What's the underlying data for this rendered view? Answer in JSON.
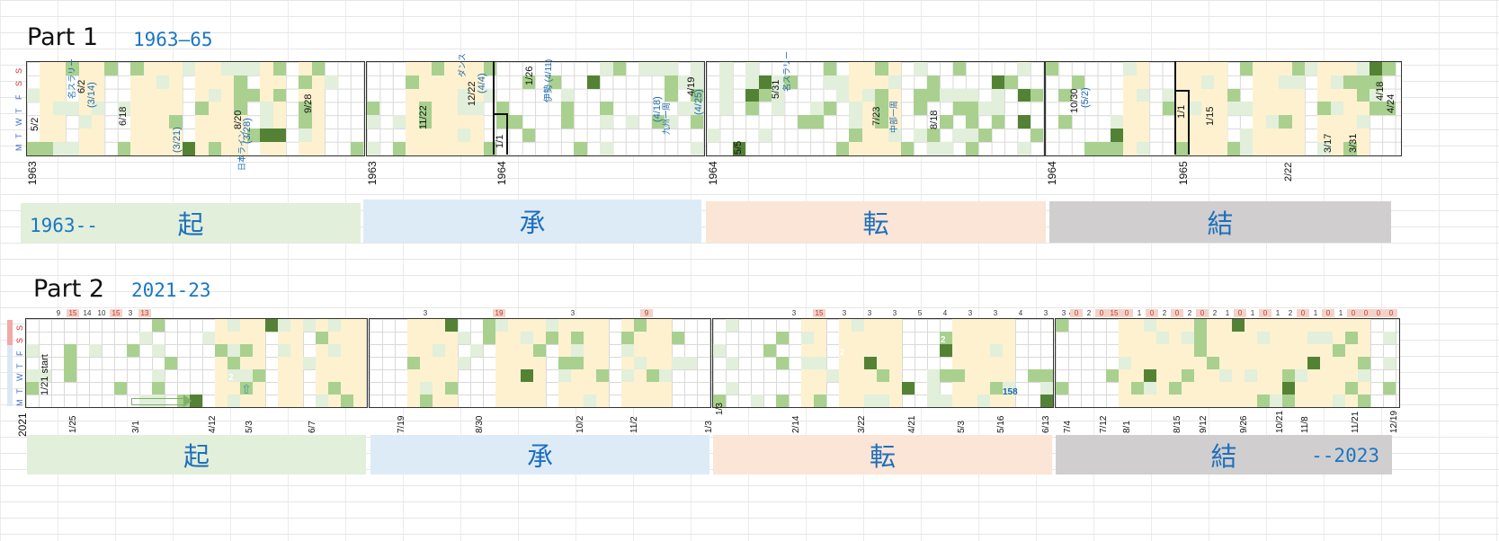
{
  "part1": {
    "title": "Part 1",
    "years": "1963–65",
    "weekdays": [
      "M",
      "T",
      "W",
      "T",
      "F",
      "S",
      "S"
    ],
    "axis_labels": [
      {
        "text": "1963"
      },
      {
        "text": "1963"
      },
      {
        "text": "1964"
      },
      {
        "text": "1964"
      },
      {
        "text": "1964"
      },
      {
        "text": "1965"
      },
      {
        "text": "2/22"
      }
    ],
    "bands": [
      {
        "kanji": "起",
        "year_note": "1963--"
      },
      {
        "kanji": "承"
      },
      {
        "kanji": "転"
      },
      {
        "kanji": "結"
      }
    ],
    "annotations": [
      "5/2",
      "名スラリー",
      "6/2",
      "(3/14)",
      "6/18",
      "(3/21)",
      "8/20",
      "(3/28)",
      "9/28",
      "日本ライン",
      "11/22",
      "12/22",
      "(4/4)",
      "ダンス",
      "1/1",
      "1/26",
      "伊勢 (4/11)",
      "4/19",
      "(4/25)",
      "(4/18)",
      "九州一周",
      "5/31",
      "名スラリー",
      "5/5",
      "7/23",
      "8/18",
      "中部一周",
      "10/30",
      "(5/2)",
      "1/1",
      "1/15",
      "3/17",
      "3/31",
      "4/18",
      "4/24"
    ],
    "colors": {
      "cream": "#fdf1cf",
      "light": "#e2efda",
      "mid": "#a9d08e",
      "dark": "#548235",
      "darker": "#375623"
    }
  },
  "part2": {
    "title": "Part 2",
    "years": "2021-23",
    "bands": [
      {
        "kanji": "起"
      },
      {
        "kanji": "承"
      },
      {
        "kanji": "転"
      },
      {
        "kanji": "結",
        "year_note": "--2023"
      }
    ],
    "start_label": "1/21 start",
    "year_label": "2021",
    "date_labels": [
      "1/25",
      "3/1",
      "4/12",
      "5/3",
      "6/7",
      "7/19",
      "8/30",
      "10/2",
      "11/2",
      "1/3",
      "1/3",
      "2/14",
      "3/22",
      "4/21",
      "5/3",
      "5/16",
      "6/13",
      "7/4",
      "7/12",
      "8/1",
      "8/15",
      "9/12",
      "9/26",
      "10/21",
      "11/8",
      "11/21",
      "12/19",
      "1/9"
    ],
    "top_counts_a": [
      "9",
      "15",
      "14",
      "10",
      "15",
      "3",
      "13"
    ],
    "top_counts_b": [
      "3",
      "19",
      "3",
      "9"
    ],
    "top_counts_c": [
      "3",
      "15",
      "3",
      "3",
      "3",
      "5",
      "4",
      "3",
      "3",
      "4",
      "3",
      "4"
    ],
    "top_counts_d": [
      "3",
      "0",
      "2",
      "0",
      "15",
      "0",
      "1",
      "0",
      "2",
      "0",
      "2",
      "0",
      "2",
      "1",
      "0",
      "1",
      "0",
      "1",
      "2",
      "0",
      "1",
      "0",
      "1",
      "0",
      "0",
      "0",
      "0"
    ],
    "cell_numbers": [
      "3",
      "2",
      "1",
      "2",
      "2",
      "2",
      "3",
      "2",
      "2",
      "2",
      "2",
      "158"
    ]
  }
}
